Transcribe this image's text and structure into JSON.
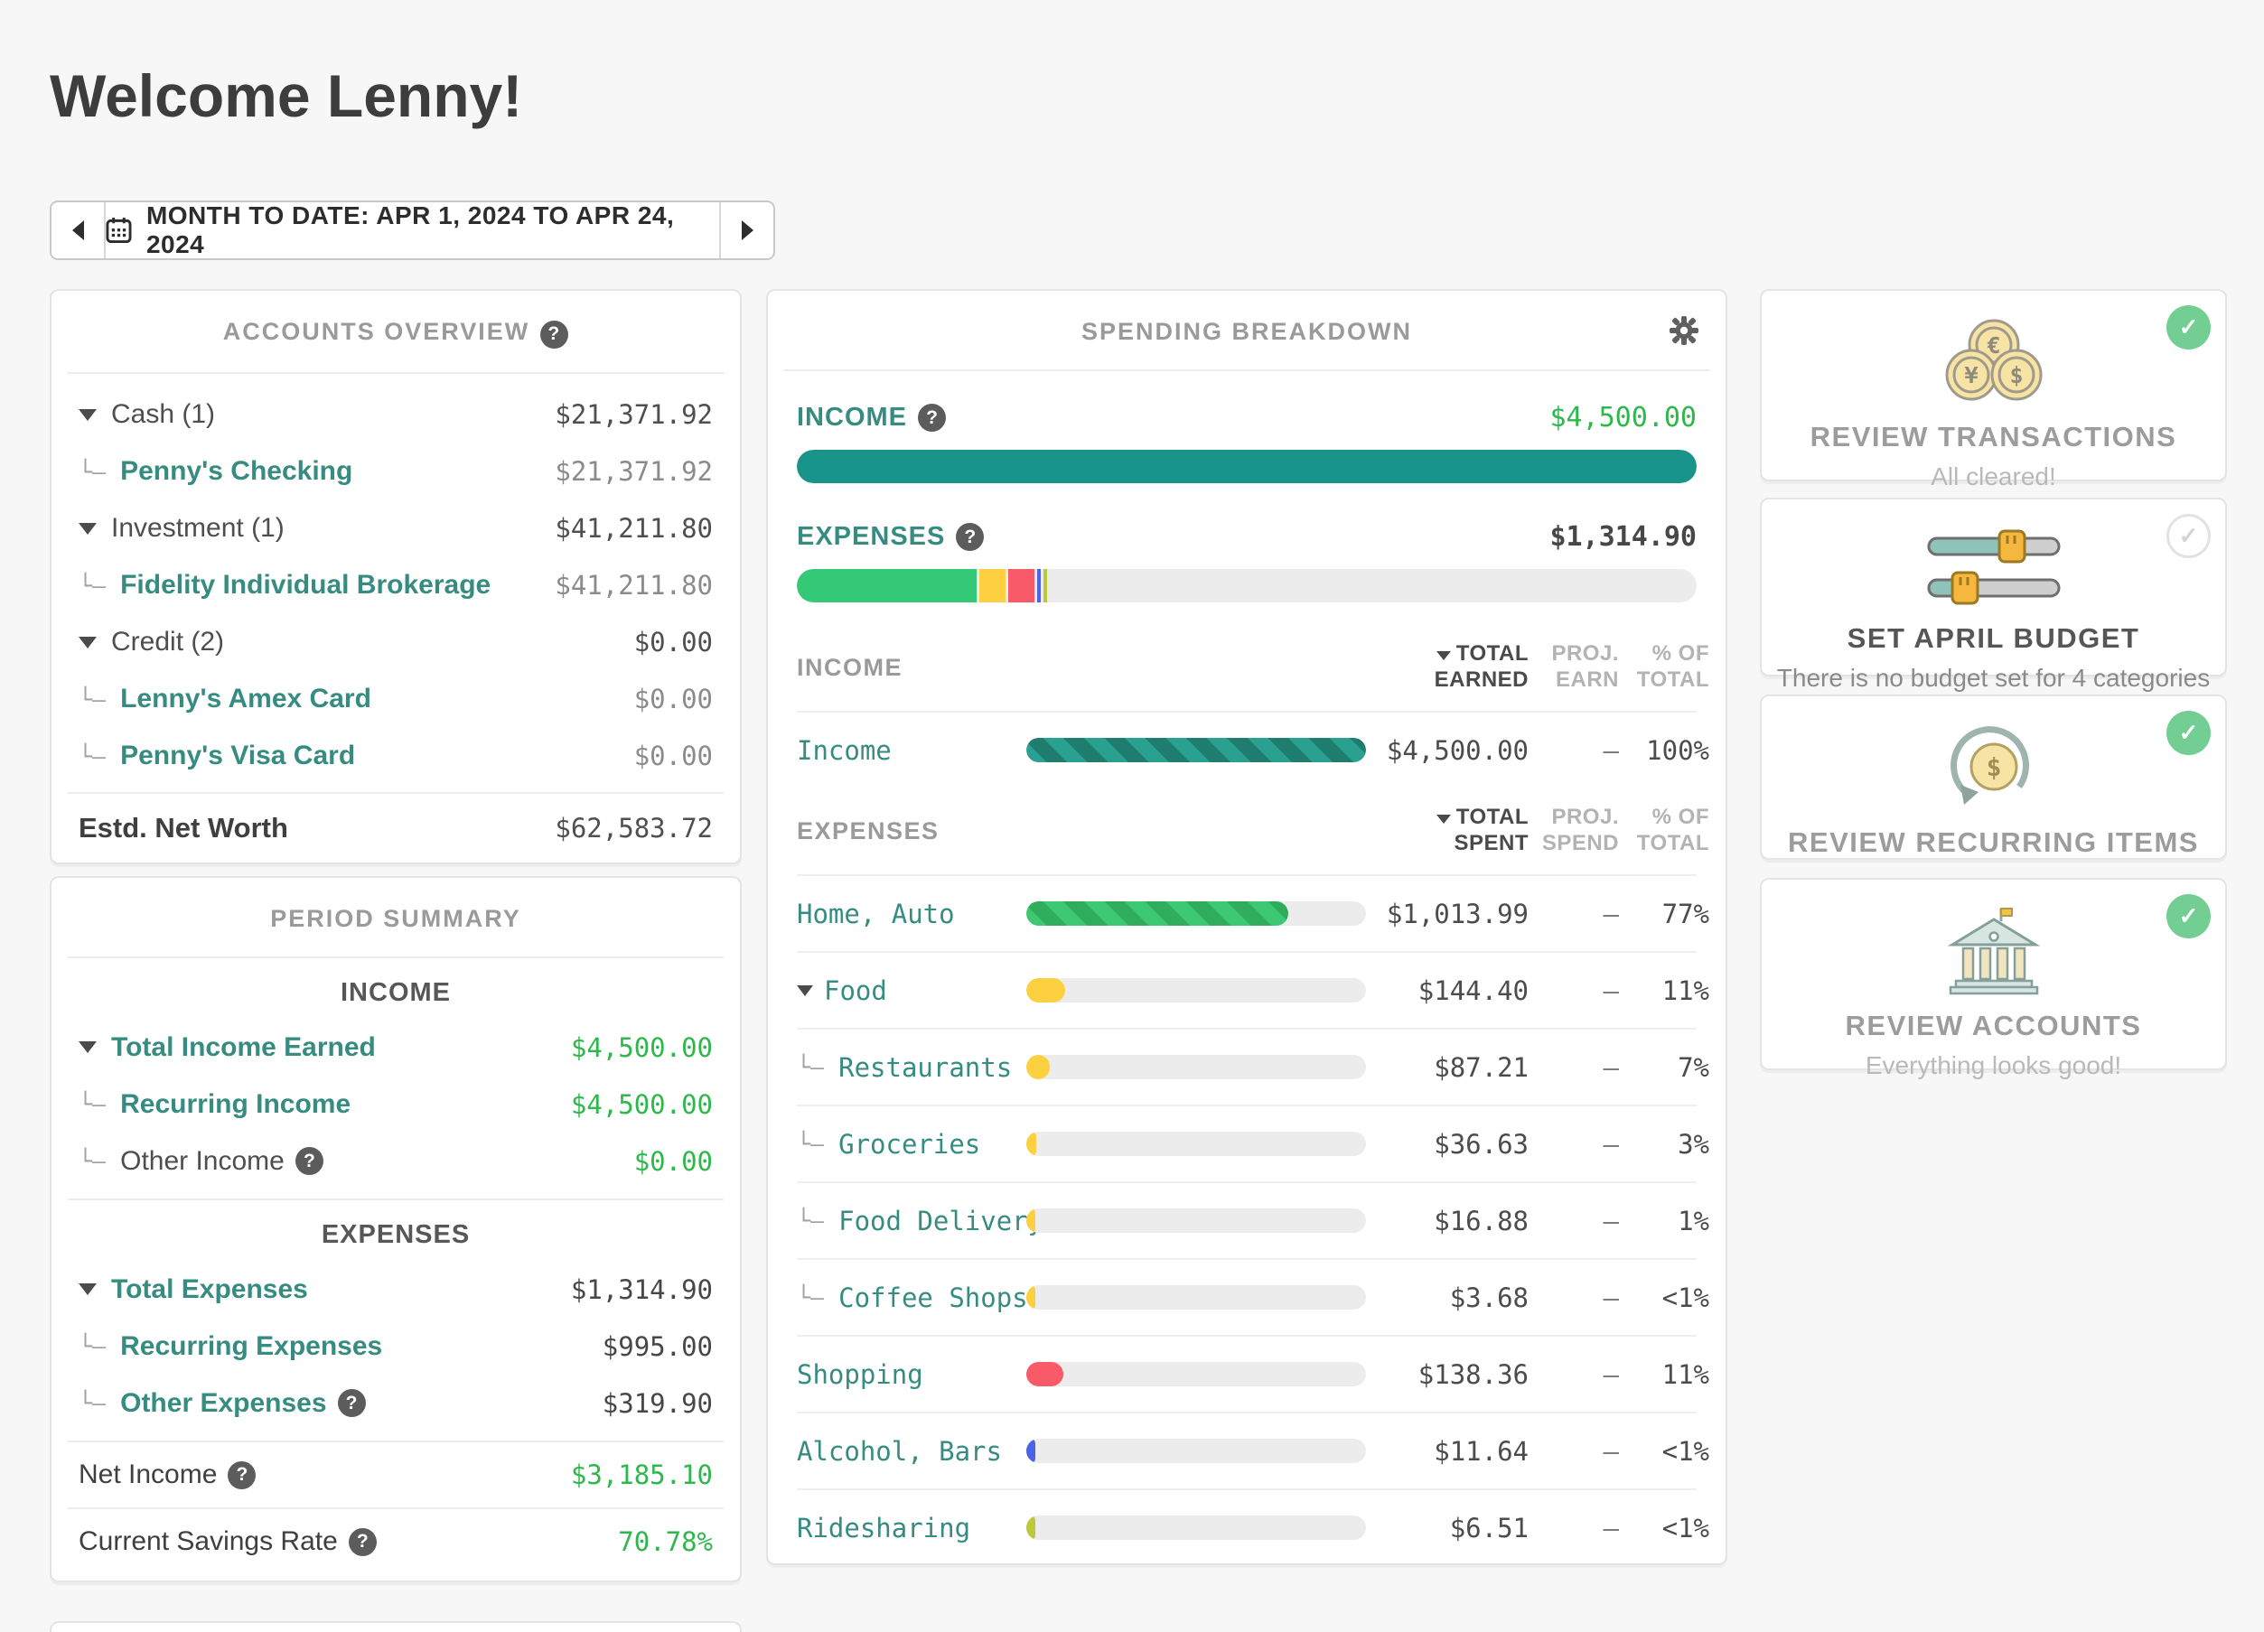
{
  "ui": {
    "tree_glyph": "└–",
    "check_glyph": "✓",
    "help_glyph": "?"
  },
  "palette": {
    "teal_link": "#378c81",
    "green_money": "#2eb84c",
    "income_bar": "#18948a",
    "track_gray": "#ececec",
    "badge_green": "#72ce92"
  },
  "header": {
    "title": "Welcome Lenny!"
  },
  "date_nav": {
    "label": "MONTH TO DATE: APR 1, 2024 TO APR 24, 2024"
  },
  "accounts_overview": {
    "title": "ACCOUNTS OVERVIEW",
    "rows": [
      {
        "type": "group",
        "label": "Cash (1)",
        "value": "$21,371.92"
      },
      {
        "type": "child",
        "label": "Penny's Checking",
        "value": "$21,371.92"
      },
      {
        "type": "group",
        "label": "Investment (1)",
        "value": "$41,211.80"
      },
      {
        "type": "child",
        "label": "Fidelity Individual Brokerage",
        "value": "$41,211.80"
      },
      {
        "type": "group",
        "label": "Credit (2)",
        "value": "$0.00"
      },
      {
        "type": "child",
        "label": "Lenny's Amex Card",
        "value": "$0.00"
      },
      {
        "type": "child",
        "label": "Penny's Visa Card",
        "value": "$0.00"
      }
    ],
    "net_worth": {
      "label": "Estd. Net Worth",
      "value": "$62,583.72"
    }
  },
  "period_summary": {
    "title": "PERIOD SUMMARY",
    "income_header": "INCOME",
    "expenses_header": "EXPENSES",
    "income_rows": [
      {
        "label": "Total Income Earned",
        "value": "$4,500.00"
      },
      {
        "label": "Recurring Income",
        "value": "$4,500.00"
      },
      {
        "label": "Other Income",
        "value": "$0.00"
      }
    ],
    "expense_rows": [
      {
        "label": "Total Expenses",
        "value": "$1,314.90"
      },
      {
        "label": "Recurring Expenses",
        "value": "$995.00"
      },
      {
        "label": "Other Expenses",
        "value": "$319.90"
      }
    ],
    "net_income": {
      "label": "Net Income",
      "value": "$3,185.10"
    },
    "savings_rate": {
      "label": "Current Savings Rate",
      "value": "70.78%"
    }
  },
  "spending_breakdown": {
    "title": "SPENDING BREAKDOWN",
    "income_label": "INCOME",
    "income_total": "$4,500.00",
    "expenses_label": "EXPENSES",
    "expenses_total": "$1,314.90",
    "expense_segments": [
      {
        "name": "Home, Auto",
        "pct": 20.0,
        "color": "#34c977"
      },
      {
        "name": "Food",
        "pct": 2.9,
        "color": "#fdd040"
      },
      {
        "name": "Shopping",
        "pct": 2.9,
        "color": "#f85a67"
      },
      {
        "name": "Alcohol, Bars",
        "pct": 0.45,
        "color": "#4a63e7"
      },
      {
        "name": "Ridesharing",
        "pct": 0.4,
        "color": "#bcc93d"
      }
    ],
    "income_section": {
      "label": "INCOME",
      "col1": "TOTAL EARNED",
      "col2": "PROJ. EARN",
      "col3": "% OF TOTAL"
    },
    "expenses_section": {
      "label": "EXPENSES",
      "col1": "TOTAL SPENT",
      "col2": "PROJ. SPEND",
      "col3": "% OF TOTAL"
    },
    "rows": [
      {
        "label": "Income",
        "indent": "none",
        "bar_pct": 100,
        "bar_color": "striped-teal",
        "amount": "$4,500.00",
        "proj": "–",
        "pct": "100%"
      },
      {
        "label": "Home, Auto",
        "indent": "none",
        "bar_pct": 77,
        "bar_color": "striped-green",
        "amount": "$1,013.99",
        "proj": "–",
        "pct": "77%"
      },
      {
        "label": "Food",
        "indent": "arrow",
        "bar_pct": 11.5,
        "bar_color": "#fdd040",
        "amount": "$144.40",
        "proj": "–",
        "pct": "11%"
      },
      {
        "label": "Restaurants",
        "indent": "child",
        "bar_pct": 7,
        "bar_color": "#fdd040",
        "amount": "$87.21",
        "proj": "–",
        "pct": "7%"
      },
      {
        "label": "Groceries",
        "indent": "child",
        "bar_pct": 3,
        "bar_color": "#fdd040",
        "amount": "$36.63",
        "proj": "–",
        "pct": "3%"
      },
      {
        "label": "Food Delivery",
        "indent": "child",
        "bar_pct": 2,
        "bar_color": "#fdd040",
        "amount": "$16.88",
        "proj": "–",
        "pct": "1%"
      },
      {
        "label": "Coffee Shops",
        "indent": "child",
        "bar_pct": 1.6,
        "bar_color": "#fdd040",
        "amount": "$3.68",
        "proj": "–",
        "pct": "<1%"
      },
      {
        "label": "Shopping",
        "indent": "none",
        "bar_pct": 11,
        "bar_color": "#f85a67",
        "amount": "$138.36",
        "proj": "–",
        "pct": "11%"
      },
      {
        "label": "Alcohol, Bars",
        "indent": "none",
        "bar_pct": 1.6,
        "bar_color": "#4a63e7",
        "amount": "$11.64",
        "proj": "–",
        "pct": "<1%"
      },
      {
        "label": "Ridesharing",
        "indent": "none",
        "bar_pct": 1.6,
        "bar_color": "#bcc93d",
        "amount": "$6.51",
        "proj": "–",
        "pct": "<1%"
      }
    ]
  },
  "tasks": [
    {
      "title": "REVIEW TRANSACTIONS",
      "subtitle": "All cleared!",
      "done": true
    },
    {
      "title": "SET APRIL BUDGET",
      "subtitle": "There is no budget set for 4 categories",
      "done": false
    },
    {
      "title": "REVIEW RECURRING ITEMS",
      "subtitle": "",
      "done": true
    },
    {
      "title": "REVIEW ACCOUNTS",
      "subtitle": "Everything looks good!",
      "done": true
    }
  ]
}
